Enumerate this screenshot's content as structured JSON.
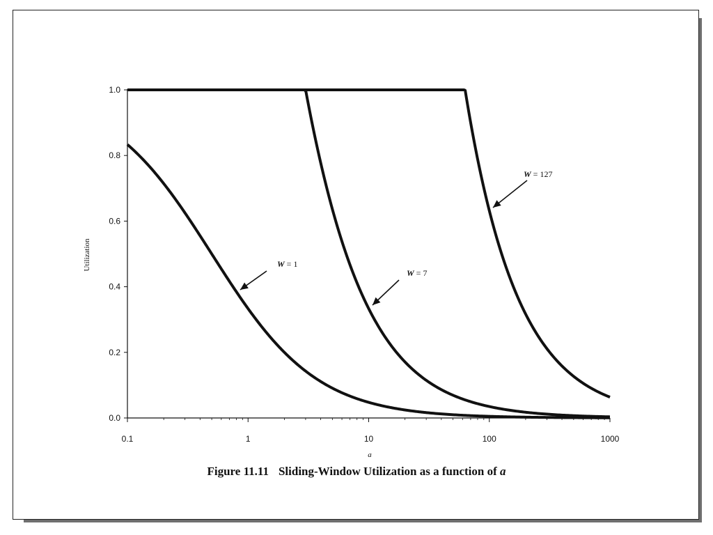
{
  "chart_data": {
    "type": "line",
    "caption_number": "Figure 11.11",
    "caption_text": "Sliding-Window Utilization as a function of ",
    "caption_var": "a",
    "xlabel": "a",
    "ylabel": "Utilization",
    "xscale": "log",
    "xlim": [
      0.1,
      1000
    ],
    "ylim": [
      0.0,
      1.0
    ],
    "x_ticks": [
      "0.1",
      "1",
      "10",
      "100",
      "1000"
    ],
    "y_ticks": [
      "0.0",
      "0.2",
      "0.4",
      "0.6",
      "0.8",
      "1.0"
    ],
    "grid": false,
    "series": [
      {
        "name": "W = 1",
        "window": 1,
        "x": [
          0.1,
          0.2,
          0.5,
          1,
          2,
          5,
          10,
          20,
          50,
          100,
          200,
          500,
          1000
        ],
        "y": [
          0.833,
          0.714,
          0.5,
          0.333,
          0.2,
          0.091,
          0.048,
          0.024,
          0.0099,
          0.005,
          0.0025,
          0.001,
          0.0005
        ]
      },
      {
        "name": "W = 7",
        "window": 7,
        "x": [
          0.1,
          1,
          3,
          4,
          5,
          10,
          20,
          50,
          100,
          200,
          500,
          1000
        ],
        "y": [
          1.0,
          1.0,
          1.0,
          0.778,
          0.636,
          0.333,
          0.171,
          0.069,
          0.035,
          0.0175,
          0.007,
          0.0035
        ]
      },
      {
        "name": "W = 127",
        "window": 127,
        "x": [
          0.1,
          10,
          63,
          80,
          100,
          200,
          500,
          1000
        ],
        "y": [
          1.0,
          1.0,
          1.0,
          0.79,
          0.632,
          0.317,
          0.127,
          0.063
        ]
      }
    ],
    "annotations": [
      {
        "label_var": "W",
        "label_rest": " = 1",
        "text_display": "W = 1",
        "points_to_x": 0.75,
        "series": 0
      },
      {
        "label_var": "W",
        "label_rest": " = 7",
        "text_display": "W = 7",
        "points_to_x": 10,
        "series": 1
      },
      {
        "label_var": "W",
        "label_rest": " = 127",
        "text_display": "W = 127",
        "points_to_x": 100,
        "series": 2
      }
    ]
  }
}
